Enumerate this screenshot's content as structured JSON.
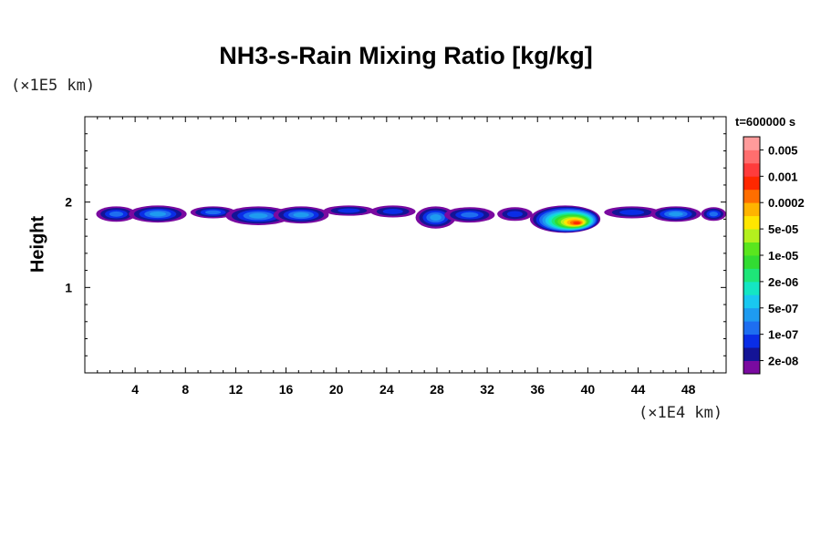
{
  "chart_data": {
    "type": "heatmap",
    "title": "NH3-s-Rain Mixing Ratio [kg/kg]",
    "ylabel": "Height",
    "xlabel": "",
    "x_unit": "(×1E4 km)",
    "y_unit": "(×1E5 km)",
    "timestamp": "t=600000 s",
    "xlim": [
      0,
      51
    ],
    "ylim": [
      0,
      3
    ],
    "x_ticks": [
      4,
      8,
      12,
      16,
      20,
      24,
      28,
      32,
      36,
      40,
      44,
      48
    ],
    "y_ticks": [
      1,
      2
    ],
    "colorbar": {
      "colors": [
        "#7a0aa0",
        "#141496",
        "#0a2de6",
        "#1e6ef0",
        "#1e9bf0",
        "#19c8f0",
        "#14e6c3",
        "#1ee678",
        "#32dc32",
        "#5ae61e",
        "#b4f01e",
        "#ffe600",
        "#ffb400",
        "#ff6e00",
        "#ff2800",
        "#ff3c3c",
        "#ff6e6e",
        "#ff9b9b"
      ],
      "labels": [
        "2e-08",
        "1e-07",
        "5e-07",
        "2e-06",
        "1e-05",
        "5e-05",
        "0.0002",
        "0.001",
        "0.005"
      ]
    },
    "blobs": [
      {
        "x": 2.5,
        "y": 1.86,
        "rx": 1.6,
        "ry": 0.09,
        "level": 3
      },
      {
        "x": 5.8,
        "y": 1.86,
        "rx": 2.3,
        "ry": 0.1,
        "level": 4
      },
      {
        "x": 10.2,
        "y": 1.88,
        "rx": 1.8,
        "ry": 0.07,
        "level": 3
      },
      {
        "x": 13.8,
        "y": 1.84,
        "rx": 2.6,
        "ry": 0.11,
        "level": 4
      },
      {
        "x": 17.2,
        "y": 1.85,
        "rx": 2.2,
        "ry": 0.1,
        "level": 4
      },
      {
        "x": 21.0,
        "y": 1.9,
        "rx": 2.0,
        "ry": 0.06,
        "level": 2
      },
      {
        "x": 24.5,
        "y": 1.89,
        "rx": 1.8,
        "ry": 0.07,
        "level": 2
      },
      {
        "x": 27.9,
        "y": 1.82,
        "rx": 1.6,
        "ry": 0.13,
        "level": 4
      },
      {
        "x": 30.6,
        "y": 1.85,
        "rx": 2.0,
        "ry": 0.09,
        "level": 3
      },
      {
        "x": 34.2,
        "y": 1.86,
        "rx": 1.4,
        "ry": 0.08,
        "level": 2
      },
      {
        "x": 38.2,
        "y": 1.8,
        "rx": 2.8,
        "ry": 0.16,
        "level": 14
      },
      {
        "x": 43.5,
        "y": 1.88,
        "rx": 2.2,
        "ry": 0.07,
        "level": 2
      },
      {
        "x": 47.0,
        "y": 1.86,
        "rx": 2.0,
        "ry": 0.09,
        "level": 4
      },
      {
        "x": 50.0,
        "y": 1.86,
        "rx": 1.0,
        "ry": 0.08,
        "level": 3
      }
    ]
  }
}
